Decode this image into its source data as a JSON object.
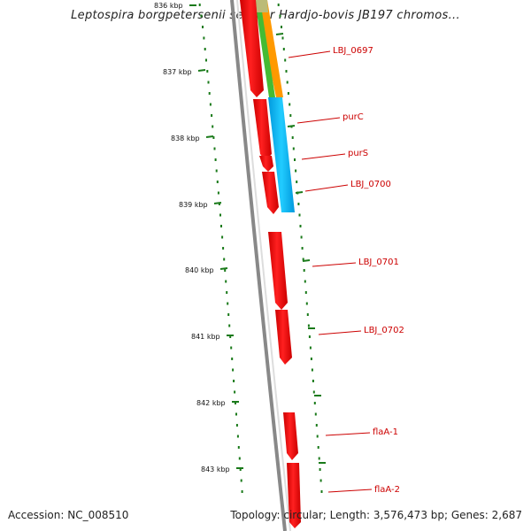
{
  "title": "Leptospira borgpetersenii serovar Hardjo-bovis JB197 chromos...",
  "ticks": [
    "836 kbp",
    "837 kbp",
    "838 kbp",
    "839 kbp",
    "840 kbp",
    "841 kbp",
    "842 kbp",
    "843 kbp"
  ],
  "genes": [
    {
      "label": "LBJ_0697"
    },
    {
      "label": "purC"
    },
    {
      "label": "purS"
    },
    {
      "label": "LBJ_0700"
    },
    {
      "label": "LBJ_0701"
    },
    {
      "label": "LBJ_0702"
    },
    {
      "label": "flaA-1"
    },
    {
      "label": "flaA-2"
    }
  ],
  "colors": {
    "gene": "#ee0000",
    "tick": "#1a7a1a",
    "label": "#cc0000",
    "backbone": "#888888",
    "cog_orange": "#ff9900",
    "cog_green": "#44bb33",
    "cog_olive": "#bbbb77",
    "cog_cyan": "#00aaee"
  },
  "footer": {
    "accession": "Accession: NC_008510",
    "topology": "Topology: circular; Length: 3,576,473 bp; Genes: 2,687"
  }
}
